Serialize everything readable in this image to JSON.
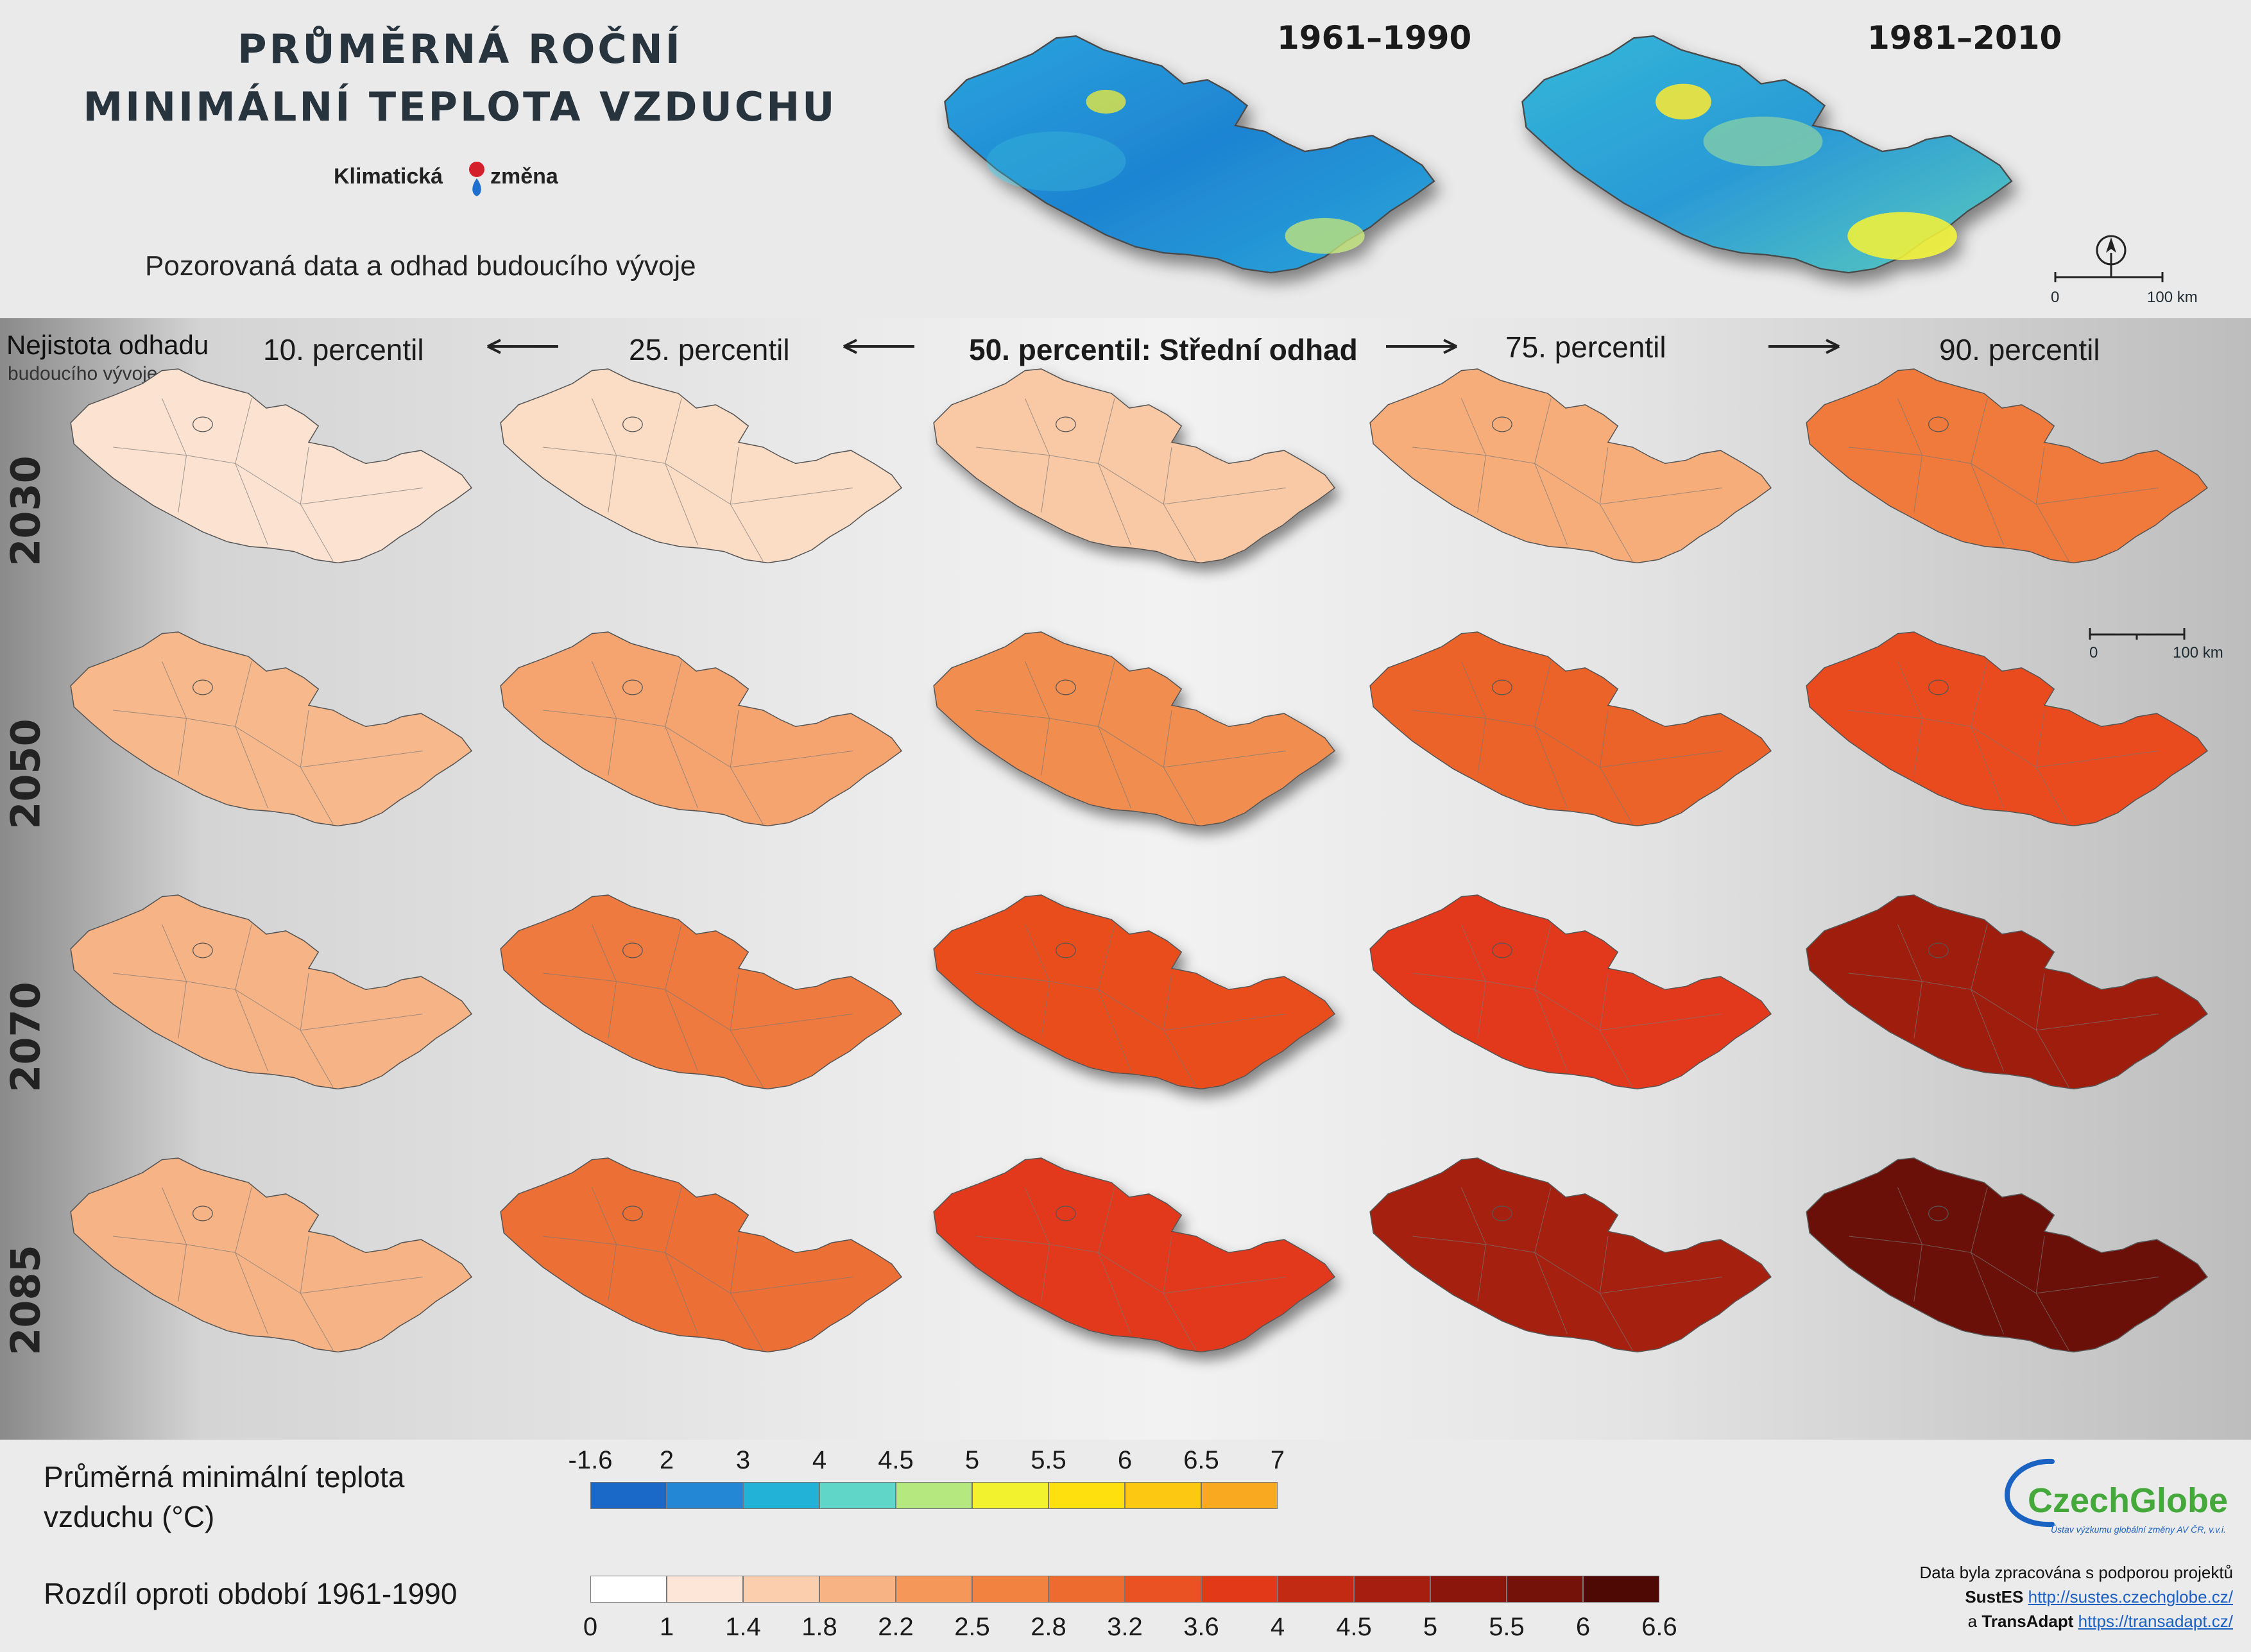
{
  "header": {
    "title_line1": "PRŮMĚRNÁ ROČNÍ",
    "title_line2": "MINIMÁLNÍ TEPLOTA VZDUCHU",
    "logo_left": "Klimatická",
    "logo_right": "změna",
    "subtitle": "Pozorovaná data a odhad budoucího vývoje"
  },
  "observed": {
    "periods": [
      "1961–1990",
      "1981–2010"
    ],
    "scale": {
      "zero": "0",
      "end": "100 km"
    }
  },
  "uncertainty": {
    "label_line1": "Nejistota odhadu",
    "label_line2": "budoucího vývoje"
  },
  "percentiles": [
    "10. percentil",
    "25. percentil",
    "50. percentil: Střední odhad",
    "75. percentil",
    "90. percentil"
  ],
  "years": [
    "2030",
    "2050",
    "2070",
    "2085"
  ],
  "grid_colors": [
    [
      "#fbe2d1",
      "#fbdcc5",
      "#f9c9a5",
      "#f7ad7a",
      "#f07a3b"
    ],
    [
      "#f7b88c",
      "#f5a470",
      "#f18d4f",
      "#ec6329",
      "#e94a1e"
    ],
    [
      "#f6b386",
      "#ef7a3f",
      "#e94d1f",
      "#e2381b",
      "#9f1d0d"
    ],
    [
      "#f6b385",
      "#ec6f36",
      "#e2391a",
      "#a5200f",
      "#6a1008"
    ]
  ],
  "scale2": {
    "zero": "0",
    "end": "100 km"
  },
  "legend": {
    "abs_title_line1": "Průměrná minimální teplota",
    "abs_title_line2": "vzduchu (°C)",
    "abs_ticks": [
      "-1.6",
      "2",
      "3",
      "4",
      "4.5",
      "5",
      "5.5",
      "6",
      "6.5",
      "7"
    ],
    "abs_colors": [
      "#1a69c9",
      "#2387d6",
      "#22b2d8",
      "#5fd6c8",
      "#b5e87e",
      "#f3f22f",
      "#fde00e",
      "#fcc812",
      "#f9a91f"
    ],
    "diff_title": "Rozdíl oproti období 1961-1990",
    "diff_ticks": [
      "0",
      "1",
      "1.4",
      "1.8",
      "2.2",
      "2.5",
      "2.8",
      "3.2",
      "3.6",
      "4",
      "4.5",
      "5",
      "5.5",
      "6",
      "6.6"
    ],
    "diff_colors": [
      "#ffffff",
      "#fde6d8",
      "#fbcfae",
      "#f8b385",
      "#f6975a",
      "#f2823f",
      "#ee6b2f",
      "#ea5223",
      "#e23a18",
      "#c32a14",
      "#a51e10",
      "#8b170c",
      "#74120a",
      "#4f0905"
    ]
  },
  "footer": {
    "org": "CzechGlobe",
    "org_sub": "Ústav výzkumu globální změny AV ČR, v.v.i.",
    "note": "Data byla zpracována s podporou projektů",
    "proj1_name": "SustES",
    "proj1_url": "http://sustes.czechglobe.cz/",
    "proj2_prefix": "a",
    "proj2_name": "TransAdapt",
    "proj2_url": "https://transadapt.cz/"
  }
}
